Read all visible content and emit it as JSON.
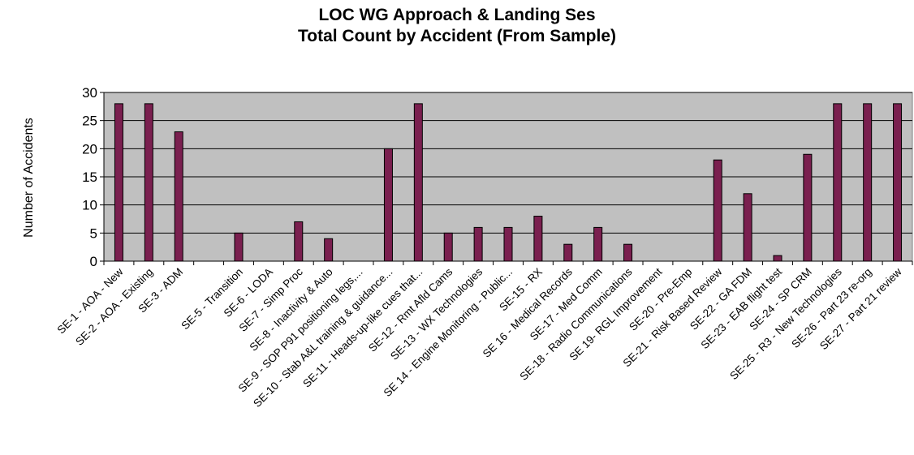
{
  "chart_data": {
    "type": "bar",
    "title": "LOC WG Approach & Landing Ses",
    "subtitle": "Total Count by Accident (From Sample)",
    "ylabel": "Number of Accidents",
    "xlabel": "",
    "ylim": [
      0,
      30
    ],
    "yticks": [
      0,
      5,
      10,
      15,
      20,
      25,
      30
    ],
    "grid": true,
    "legend": "none",
    "colors": {
      "bar": "#7a1f4f",
      "plot_background": "#c0c0c0",
      "gridline": "#000000"
    },
    "categories": [
      "SE-1 - AOA - New",
      "SE-2 - AOA - Existing",
      "SE-3 - ADM",
      "",
      "SE-5 - Transition",
      "SE-6 - LODA",
      "SE-7 - Simp Proc",
      "SE-8 - Inactivity & Auto",
      "SE-9 - SOP P91 positioning legs,...",
      "SE-10 - Stab A&L training & guidance...",
      "SE-11 - Heads-up-like cues that...",
      "SE-12 - Rmt Afld Cams",
      "SE-13 - WX Technologies",
      "SE 14 - Engine Monitoring - Public...",
      "SE-15 - RX",
      "SE 16 - Medical Records",
      "SE-17 - Med Comm",
      "SE-18 - Radio Communications",
      "SE 19- RGL Improvement",
      "SE-20 - Pre-Emp",
      "SE-21 - Risk Based Review",
      "SE-22 - GA FDM",
      "SE-23 - EAB flight test",
      "SE-24 - SP CRM",
      "SE-25 - R3 - New Technologies",
      "SE-26 - Part 23 re-org",
      "SE-27 - Part 21 review"
    ],
    "values": [
      28,
      28,
      23,
      0,
      5,
      0,
      7,
      4,
      0,
      20,
      28,
      5,
      6,
      6,
      8,
      3,
      6,
      3,
      0,
      0,
      18,
      12,
      1,
      19,
      28,
      28,
      28
    ]
  }
}
